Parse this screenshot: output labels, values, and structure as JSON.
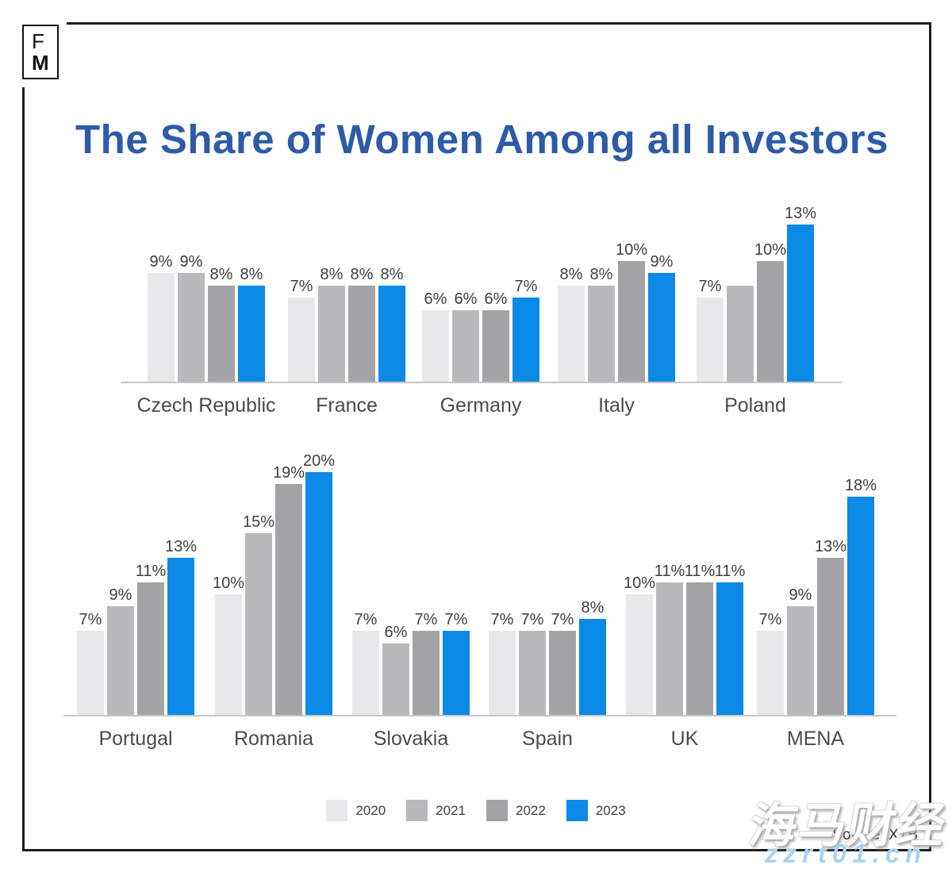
{
  "logo": {
    "top": "F",
    "bottom": "M"
  },
  "title": "The Share of Women Among all Investors",
  "source": "Source: XTB",
  "watermark": {
    "text": "海马财经",
    "url": "zzrt01.cn"
  },
  "legend": [
    {
      "label": "2020",
      "color": "#e8e8ea"
    },
    {
      "label": "2021",
      "color": "#b9b9bc"
    },
    {
      "label": "2022",
      "color": "#a3a3a6"
    },
    {
      "label": "2023",
      "color": "#0b8ae8"
    }
  ],
  "chart_data": {
    "type": "bar",
    "title": "The Share of Women Among all Investors",
    "unit": "%",
    "years": [
      "2020",
      "2021",
      "2022",
      "2023"
    ],
    "colors": [
      "#e8e8ea",
      "#b9b9bc",
      "#a3a3a6",
      "#0b8ae8"
    ],
    "ylim": [
      0,
      21
    ],
    "grid": false,
    "legend_position": "bottom-center",
    "rows": [
      {
        "groups": [
          {
            "name": "Czech Republic",
            "values": [
              9,
              9,
              8,
              8
            ],
            "labels": [
              "9%",
              "9%",
              "8%",
              "8%"
            ]
          },
          {
            "name": "France",
            "values": [
              7,
              8,
              8,
              8
            ],
            "labels": [
              "7%",
              "8%",
              "8%",
              "8%"
            ]
          },
          {
            "name": "Germany",
            "values": [
              6,
              6,
              6,
              7
            ],
            "labels": [
              "6%",
              "6%",
              "6%",
              "7%"
            ]
          },
          {
            "name": "Italy",
            "values": [
              8,
              8,
              10,
              9
            ],
            "labels": [
              "8%",
              "8%",
              "10%",
              "9%"
            ]
          },
          {
            "name": "Poland",
            "values": [
              7,
              8,
              10,
              13
            ],
            "labels": [
              "7%",
              "",
              "10%",
              "13%"
            ]
          }
        ]
      },
      {
        "groups": [
          {
            "name": "Portugal",
            "values": [
              7,
              9,
              11,
              13
            ],
            "labels": [
              "7%",
              "9%",
              "11%",
              "13%"
            ]
          },
          {
            "name": "Romania",
            "values": [
              10,
              15,
              19,
              20
            ],
            "labels": [
              "10%",
              "15%",
              "19%",
              "20%"
            ]
          },
          {
            "name": "Slovakia",
            "values": [
              7,
              6,
              7,
              7
            ],
            "labels": [
              "7%",
              "6%",
              "7%",
              "7%"
            ]
          },
          {
            "name": "Spain",
            "values": [
              7,
              7,
              7,
              8
            ],
            "labels": [
              "7%",
              "7%",
              "7%",
              "8%"
            ]
          },
          {
            "name": "UK",
            "values": [
              10,
              11,
              11,
              11
            ],
            "labels": [
              "10%",
              "11%",
              "11%",
              "11%"
            ]
          },
          {
            "name": "MENA",
            "values": [
              7,
              9,
              13,
              18
            ],
            "labels": [
              "7%",
              "9%",
              "13%",
              "18%"
            ]
          }
        ]
      }
    ]
  }
}
